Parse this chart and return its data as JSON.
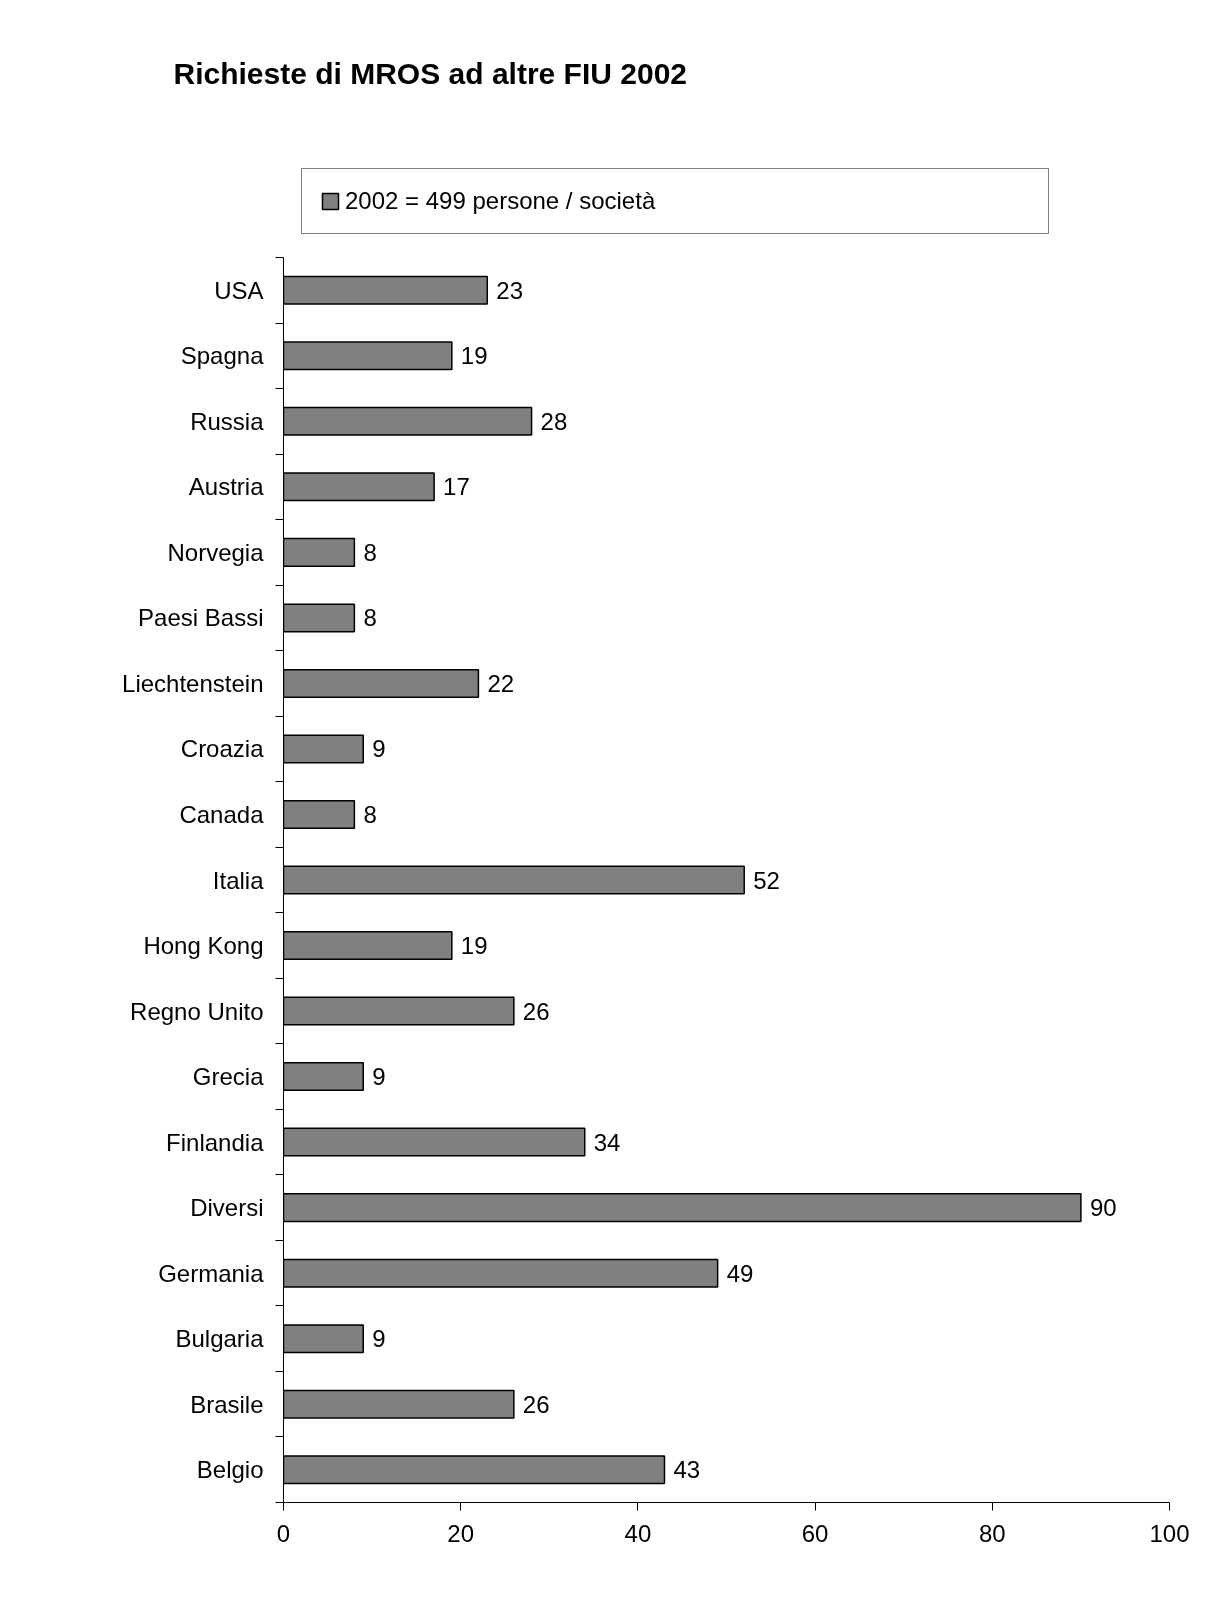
{
  "chart_data": {
    "type": "bar",
    "orientation": "horizontal",
    "title": "Richieste di MROS ad altre FIU 2002",
    "categories": [
      "USA",
      "Spagna",
      "Russia",
      "Austria",
      "Norvegia",
      "Paesi Bassi",
      "Liechtenstein",
      "Croazia",
      "Canada",
      "Italia",
      "Hong Kong",
      "Regno Unito",
      "Grecia",
      "Finlandia",
      "Diversi",
      "Germania",
      "Bulgaria",
      "Brasile",
      "Belgio"
    ],
    "series": [
      {
        "name": "2002 = 499 persone / società",
        "color": "#808080",
        "values": [
          23,
          19,
          28,
          17,
          8,
          8,
          22,
          9,
          8,
          52,
          19,
          26,
          9,
          34,
          90,
          49,
          9,
          26,
          43
        ]
      }
    ],
    "xlim": [
      0,
      100
    ],
    "xticks": [
      0,
      20,
      40,
      60,
      80,
      100
    ],
    "data_labels": true,
    "legend": "top",
    "grid": false
  }
}
